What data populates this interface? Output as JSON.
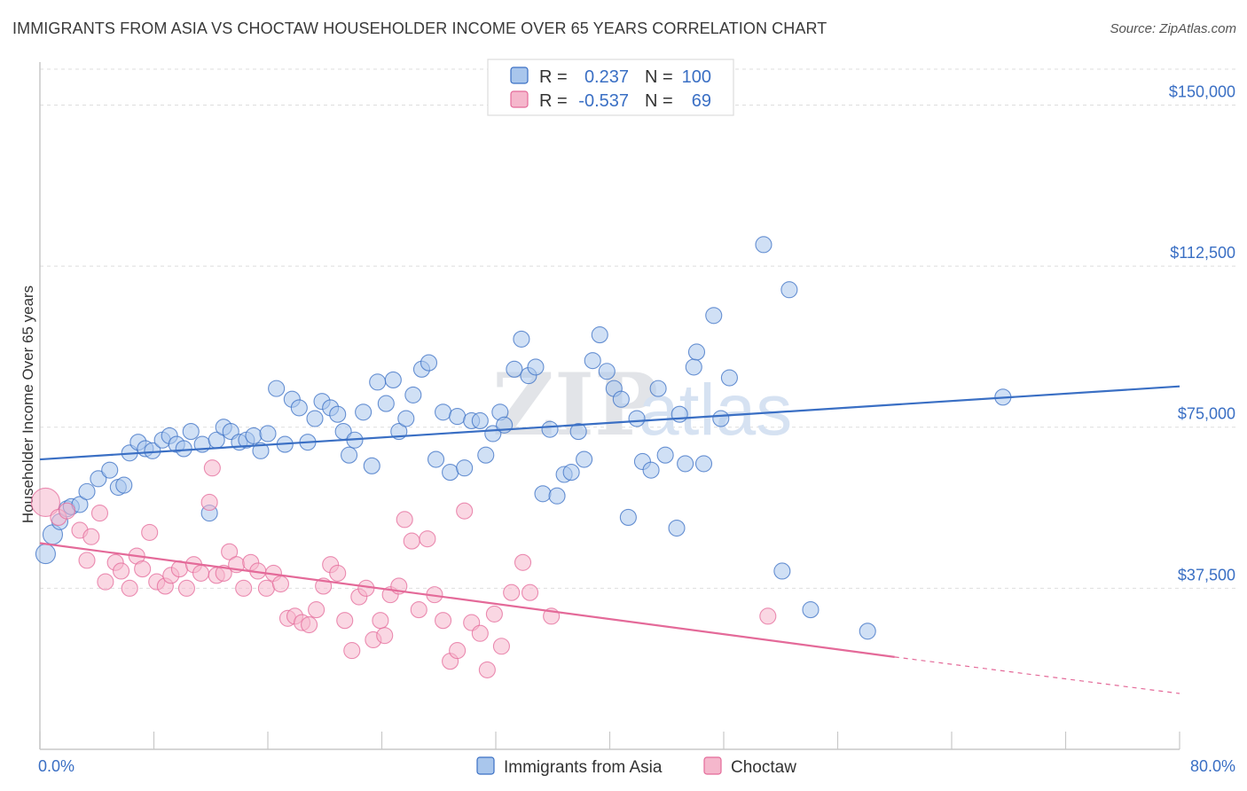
{
  "title": "IMMIGRANTS FROM ASIA VS CHOCTAW HOUSEHOLDER INCOME OVER 65 YEARS CORRELATION CHART",
  "source": "Source: ZipAtlas.com",
  "watermark": {
    "part1": "ZIP",
    "part2": "atlas"
  },
  "colors": {
    "blue": "#3a6fc4",
    "blue_fill": "#a9c6ec",
    "pink": "#e46a99",
    "pink_fill": "#f5b7cc"
  },
  "legend": {
    "rows": [
      {
        "r_label": "R =",
        "r_value": "0.237",
        "n_label": "N =",
        "n_value": "100"
      },
      {
        "r_label": "R =",
        "r_value": "-0.537",
        "n_label": "N =",
        "n_value": "69"
      }
    ]
  },
  "chart_data": {
    "type": "scatter",
    "ylabel": "Householder Income Over 65 years",
    "xlim": [
      0,
      80
    ],
    "ylim": [
      0,
      160000
    ],
    "x_tick_labels": [
      {
        "value": 0,
        "label": "0.0%"
      },
      {
        "value": 80,
        "label": "80.0%"
      }
    ],
    "y_ticks": [
      {
        "value": 37500,
        "label": "$37,500"
      },
      {
        "value": 75000,
        "label": "$75,000"
      },
      {
        "value": 112500,
        "label": "$112,500"
      },
      {
        "value": 150000,
        "label": "$150,000"
      }
    ],
    "grid": "horizontal-dashed",
    "legend_position": "top-center",
    "series": [
      {
        "name": "Immigrants from Asia",
        "color": "#3a6fc4",
        "trend": {
          "x": [
            0,
            80
          ],
          "y": [
            67500,
            84500
          ]
        },
        "points": [
          [
            0.4,
            45500
          ],
          [
            0.9,
            50000
          ],
          [
            1.4,
            53000
          ],
          [
            1.9,
            56000
          ],
          [
            2.2,
            56500
          ],
          [
            2.8,
            57000
          ],
          [
            3.3,
            60000
          ],
          [
            4.1,
            63000
          ],
          [
            4.9,
            65000
          ],
          [
            5.5,
            61000
          ],
          [
            5.9,
            61500
          ],
          [
            6.3,
            69000
          ],
          [
            6.9,
            71500
          ],
          [
            7.4,
            70000
          ],
          [
            7.9,
            69500
          ],
          [
            8.6,
            72000
          ],
          [
            9.1,
            73000
          ],
          [
            9.6,
            71000
          ],
          [
            10.1,
            70000
          ],
          [
            10.6,
            74000
          ],
          [
            11.4,
            71000
          ],
          [
            11.9,
            55000
          ],
          [
            12.4,
            72000
          ],
          [
            12.9,
            75000
          ],
          [
            13.4,
            74000
          ],
          [
            14.0,
            71500
          ],
          [
            14.5,
            72000
          ],
          [
            15.0,
            73000
          ],
          [
            15.5,
            69500
          ],
          [
            16.0,
            73500
          ],
          [
            16.6,
            84000
          ],
          [
            17.2,
            71000
          ],
          [
            17.7,
            81500
          ],
          [
            18.2,
            79500
          ],
          [
            18.8,
            71500
          ],
          [
            19.3,
            77000
          ],
          [
            19.8,
            81000
          ],
          [
            20.4,
            79500
          ],
          [
            20.9,
            78000
          ],
          [
            21.3,
            74000
          ],
          [
            21.7,
            68500
          ],
          [
            22.1,
            72000
          ],
          [
            22.7,
            78500
          ],
          [
            23.3,
            66000
          ],
          [
            23.7,
            85500
          ],
          [
            24.3,
            80500
          ],
          [
            24.8,
            86000
          ],
          [
            25.2,
            74000
          ],
          [
            25.7,
            77000
          ],
          [
            26.2,
            82500
          ],
          [
            26.8,
            88500
          ],
          [
            27.3,
            90000
          ],
          [
            27.8,
            67500
          ],
          [
            28.3,
            78500
          ],
          [
            28.8,
            64500
          ],
          [
            29.3,
            77500
          ],
          [
            29.8,
            65500
          ],
          [
            30.3,
            76500
          ],
          [
            30.9,
            76500
          ],
          [
            31.3,
            68500
          ],
          [
            31.8,
            73500
          ],
          [
            32.3,
            78500
          ],
          [
            32.6,
            75500
          ],
          [
            33.3,
            88500
          ],
          [
            33.8,
            95500
          ],
          [
            34.3,
            87000
          ],
          [
            34.8,
            89000
          ],
          [
            35.3,
            59500
          ],
          [
            35.8,
            74500
          ],
          [
            36.3,
            59000
          ],
          [
            36.8,
            64000
          ],
          [
            37.3,
            64500
          ],
          [
            37.8,
            74000
          ],
          [
            38.2,
            67500
          ],
          [
            38.8,
            90500
          ],
          [
            39.3,
            96500
          ],
          [
            39.8,
            88000
          ],
          [
            40.3,
            84000
          ],
          [
            40.8,
            81500
          ],
          [
            41.3,
            54000
          ],
          [
            41.9,
            77000
          ],
          [
            42.3,
            67000
          ],
          [
            42.9,
            65000
          ],
          [
            43.4,
            84000
          ],
          [
            43.9,
            68500
          ],
          [
            44.7,
            51500
          ],
          [
            44.9,
            78000
          ],
          [
            45.3,
            66500
          ],
          [
            45.9,
            89000
          ],
          [
            46.1,
            92500
          ],
          [
            46.6,
            66500
          ],
          [
            47.3,
            101000
          ],
          [
            47.8,
            77000
          ],
          [
            48.4,
            86500
          ],
          [
            50.8,
            117500
          ],
          [
            52.1,
            41500
          ],
          [
            52.6,
            107000
          ],
          [
            54.1,
            32500
          ],
          [
            58.1,
            27500
          ],
          [
            67.6,
            82000
          ]
        ]
      },
      {
        "name": "Choctaw",
        "color": "#e46a99",
        "trend": {
          "x": [
            0,
            60
          ],
          "y": [
            48000,
            21500
          ],
          "dashed_to": {
            "x": 80,
            "y": 13000
          }
        },
        "points": [
          [
            0.4,
            57500
          ],
          [
            1.3,
            54000
          ],
          [
            1.9,
            55500
          ],
          [
            2.8,
            51000
          ],
          [
            3.3,
            44000
          ],
          [
            3.6,
            49500
          ],
          [
            4.2,
            55000
          ],
          [
            4.6,
            39000
          ],
          [
            5.3,
            43500
          ],
          [
            5.7,
            41500
          ],
          [
            6.3,
            37500
          ],
          [
            6.8,
            45000
          ],
          [
            7.2,
            42000
          ],
          [
            7.7,
            50500
          ],
          [
            8.2,
            39000
          ],
          [
            8.8,
            38000
          ],
          [
            9.2,
            40500
          ],
          [
            9.8,
            42000
          ],
          [
            10.3,
            37500
          ],
          [
            10.8,
            43000
          ],
          [
            11.3,
            41000
          ],
          [
            11.9,
            57500
          ],
          [
            12.1,
            65500
          ],
          [
            12.4,
            40500
          ],
          [
            12.9,
            41000
          ],
          [
            13.3,
            46000
          ],
          [
            13.8,
            43000
          ],
          [
            14.3,
            37500
          ],
          [
            14.8,
            43500
          ],
          [
            15.3,
            41500
          ],
          [
            15.9,
            37500
          ],
          [
            16.4,
            41000
          ],
          [
            16.9,
            38500
          ],
          [
            17.4,
            30500
          ],
          [
            17.9,
            31000
          ],
          [
            18.4,
            29500
          ],
          [
            18.9,
            29000
          ],
          [
            19.4,
            32500
          ],
          [
            19.9,
            38000
          ],
          [
            20.4,
            43000
          ],
          [
            20.9,
            41000
          ],
          [
            21.4,
            30000
          ],
          [
            21.9,
            23000
          ],
          [
            22.4,
            35500
          ],
          [
            22.9,
            37500
          ],
          [
            23.4,
            25500
          ],
          [
            23.9,
            30000
          ],
          [
            24.2,
            26500
          ],
          [
            24.6,
            36000
          ],
          [
            25.2,
            38000
          ],
          [
            25.6,
            53500
          ],
          [
            26.1,
            48500
          ],
          [
            26.6,
            32500
          ],
          [
            27.2,
            49000
          ],
          [
            27.7,
            36000
          ],
          [
            28.3,
            30000
          ],
          [
            28.8,
            20500
          ],
          [
            29.3,
            23000
          ],
          [
            29.8,
            55500
          ],
          [
            30.3,
            29500
          ],
          [
            30.9,
            27000
          ],
          [
            31.4,
            18500
          ],
          [
            31.9,
            31500
          ],
          [
            32.4,
            24000
          ],
          [
            33.1,
            36500
          ],
          [
            33.9,
            43500
          ],
          [
            34.4,
            36500
          ],
          [
            35.9,
            31000
          ],
          [
            51.1,
            31000
          ]
        ]
      }
    ]
  },
  "bottom_legend": {
    "items": [
      {
        "label": "Immigrants from Asia"
      },
      {
        "label": "Choctaw"
      }
    ]
  }
}
